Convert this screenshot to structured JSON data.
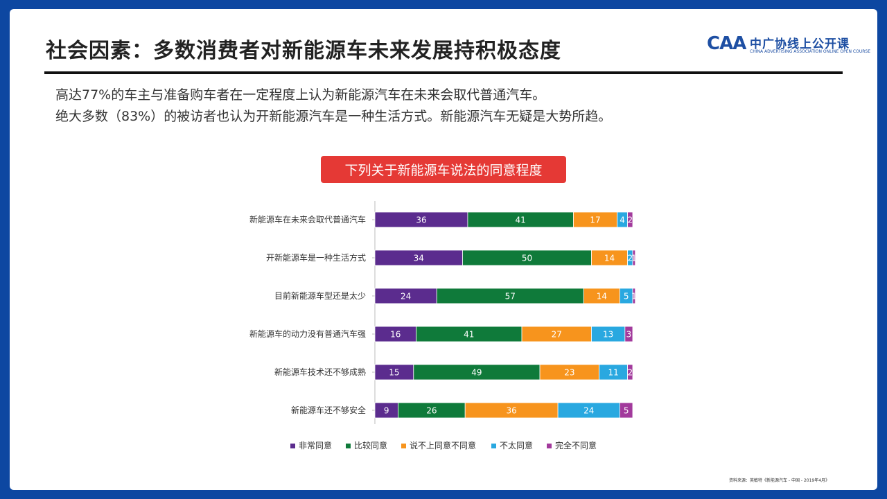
{
  "header": {
    "title": "社会因素：多数消费者对新能源车未来发展持积极态度",
    "logo_mark": "CAA",
    "logo_cn": "中广协线上公开课",
    "logo_en": "CHINA ADVERTISING ASSOCIATION ONLINE OPEN COURSE"
  },
  "intro": {
    "line1": "高达77%的车主与准备购车者在一定程度上认为新能源汽车在未来会取代普通汽车。",
    "line2": "绝大多数（83%）的被访者也认为开新能源汽车是一种生活方式。新能源汽车无疑是大势所趋。"
  },
  "chart_banner": "下列关于新能源车说法的同意程度",
  "source": "资料来源：英敏特《新能源汽车 - 中国 - 2019年4月》",
  "chart_data": {
    "type": "bar",
    "orientation": "horizontal",
    "stacked": true,
    "categories": [
      "新能源车在未来会取代普通汽车",
      "开新能源车是一种生活方式",
      "目前新能源车型还是太少",
      "新能源车的动力没有普通汽车强",
      "新能源车技术还不够成熟",
      "新能源车还不够安全"
    ],
    "series": [
      {
        "name": "非常同意",
        "color": "#5b2c8e",
        "values": [
          36,
          34,
          24,
          16,
          15,
          9
        ]
      },
      {
        "name": "比较同意",
        "color": "#0f7a3a",
        "values": [
          41,
          50,
          57,
          41,
          49,
          26
        ]
      },
      {
        "name": "说不上同意不同意",
        "color": "#f7941d",
        "values": [
          17,
          14,
          14,
          27,
          23,
          36
        ]
      },
      {
        "name": "不太同意",
        "color": "#29a8e0",
        "values": [
          4,
          2,
          5,
          13,
          11,
          24
        ]
      },
      {
        "name": "完全不同意",
        "color": "#a23a9c",
        "values": [
          2,
          1,
          1,
          3,
          2,
          5
        ]
      }
    ],
    "legend_position": "bottom",
    "grid": false
  }
}
